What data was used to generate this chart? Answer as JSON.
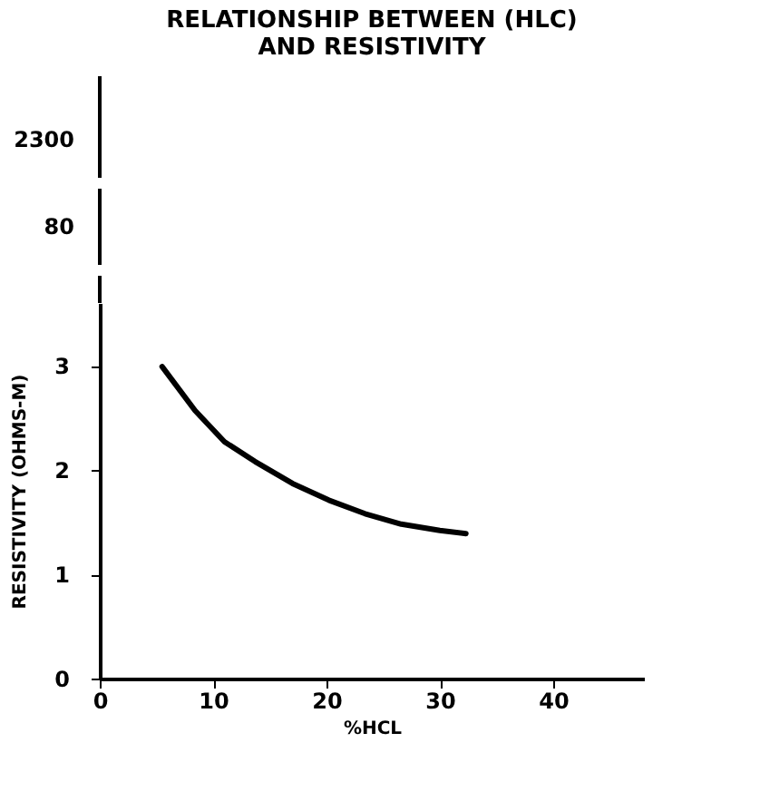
{
  "chart_data": {
    "type": "line",
    "title": "RELATIONSHIP BETWEEN (HLC)\nAND RESISTIVITY",
    "xlabel": "%HCL",
    "ylabel": "RESISTIVITY (OHMS-M)",
    "x": [
      5.5,
      8.4,
      11,
      13.7,
      17,
      20.2,
      23.4,
      26.6,
      30,
      32.3
    ],
    "series": [
      {
        "color": "#000000",
        "values": [
          2.99,
          2.57,
          2.27,
          2.08,
          1.87,
          1.71,
          1.58,
          1.48,
          1.42,
          1.39
        ]
      }
    ],
    "xlim": [
      0,
      48
    ],
    "xticks": [
      0,
      10,
      20,
      30,
      40
    ],
    "ylim": [
      0,
      3.6
    ],
    "yticks": [
      0,
      1,
      2,
      3
    ],
    "annotations": [
      "80",
      "2300"
    ],
    "grid": false,
    "legend": false,
    "marker": "none",
    "line_style": "solid"
  }
}
